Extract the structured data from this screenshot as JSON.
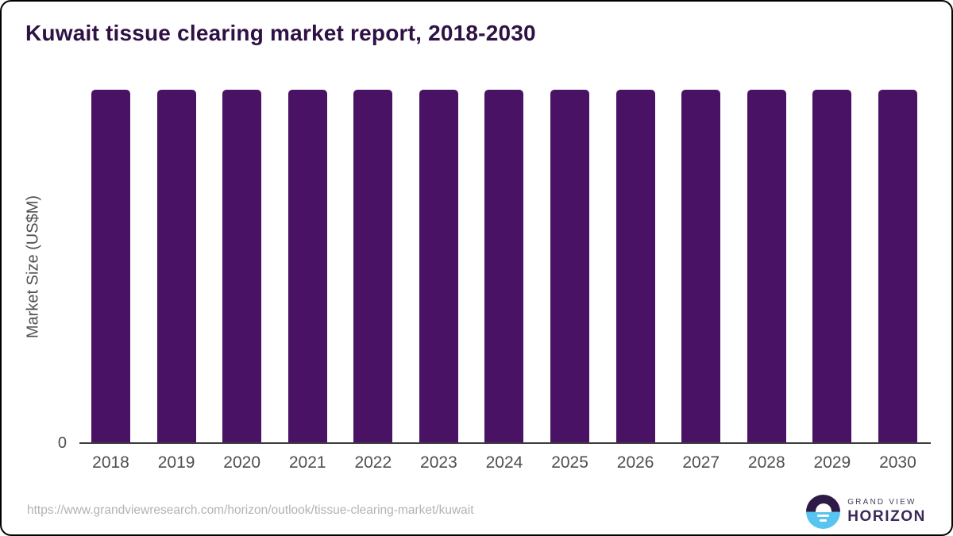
{
  "title": "Kuwait tissue clearing market report, 2018-2030",
  "chart_data": {
    "type": "bar",
    "title": "Kuwait tissue clearing market report, 2018-2030",
    "categories": [
      "2018",
      "2019",
      "2020",
      "2021",
      "2022",
      "2023",
      "2024",
      "2025",
      "2026",
      "2027",
      "2028",
      "2029",
      "2030"
    ],
    "values": [
      1,
      1,
      1,
      1,
      1,
      1,
      1,
      1,
      1,
      1,
      1,
      1,
      1
    ],
    "xlabel": "",
    "ylabel": "Market Size (US$M)",
    "y_tick_labels": [
      "0"
    ],
    "ylim": [
      0,
      1
    ],
    "grid": false,
    "legend": false,
    "bar_color": "#4a1264"
  },
  "axis": {
    "zero_label": "0"
  },
  "footer": {
    "source_url": "https://www.grandviewresearch.com/horizon/outlook/tissue-clearing-market/kuwait",
    "logo": {
      "top_line": "GRAND VIEW",
      "bottom_line": "HORIZON"
    }
  },
  "colors": {
    "title": "#2f1144",
    "bar": "#4a1264",
    "axis_text": "#4f4f4f",
    "axis_line": "#3d3d3d",
    "url_text": "#b3b3b3",
    "logo_purple": "#2e1a47",
    "logo_blue": "#58c4f0"
  }
}
